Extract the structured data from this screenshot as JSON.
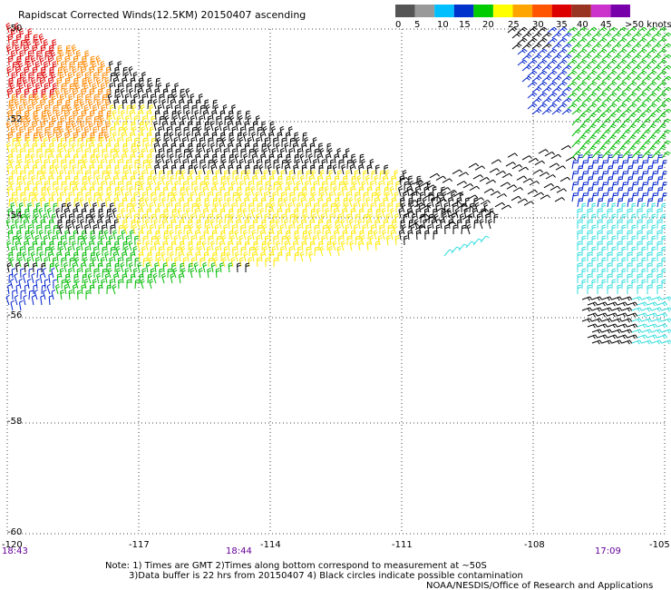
{
  "title": "Rapidscat Corrected Winds(12.5KM) 20150407 ascending",
  "colorbar": {
    "colors": [
      "#555555",
      "#999999",
      "#00bfff",
      "#0033cc",
      "#00cc00",
      "#ffff00",
      "#ffa500",
      "#ff5500",
      "#dd0000",
      "#993322",
      "#cc33cc",
      "#7700aa"
    ],
    "tick_labels": [
      "0",
      "5",
      "10",
      "15",
      "20",
      "25",
      "30",
      "35",
      "40",
      "45",
      ">50 knots"
    ]
  },
  "lat_labels": [
    "-50",
    "-52",
    "-54",
    "-56",
    "-58",
    "-60"
  ],
  "lon_labels": [
    "-120",
    "-117",
    "-114",
    "-111",
    "-108",
    "-105"
  ],
  "time_labels": [
    "18:43",
    "18:44",
    "17:09"
  ],
  "notes": [
    "Note: 1) Times are GMT 2)Times along bottom correspond to measurement at ~50S",
    "3)Data buffer is 22 hrs from 20150407 4) Black circles indicate possible contamination"
  ],
  "credit": "NOAA/NESDIS/Office of Research and Applications",
  "speed_colors": {
    "black": "#000000",
    "yellow": "#ffea00",
    "green": "#00bb00",
    "blue": "#0022cc",
    "cyan": "#33dddd",
    "orange": "#ff8800",
    "red": "#dd0000"
  }
}
